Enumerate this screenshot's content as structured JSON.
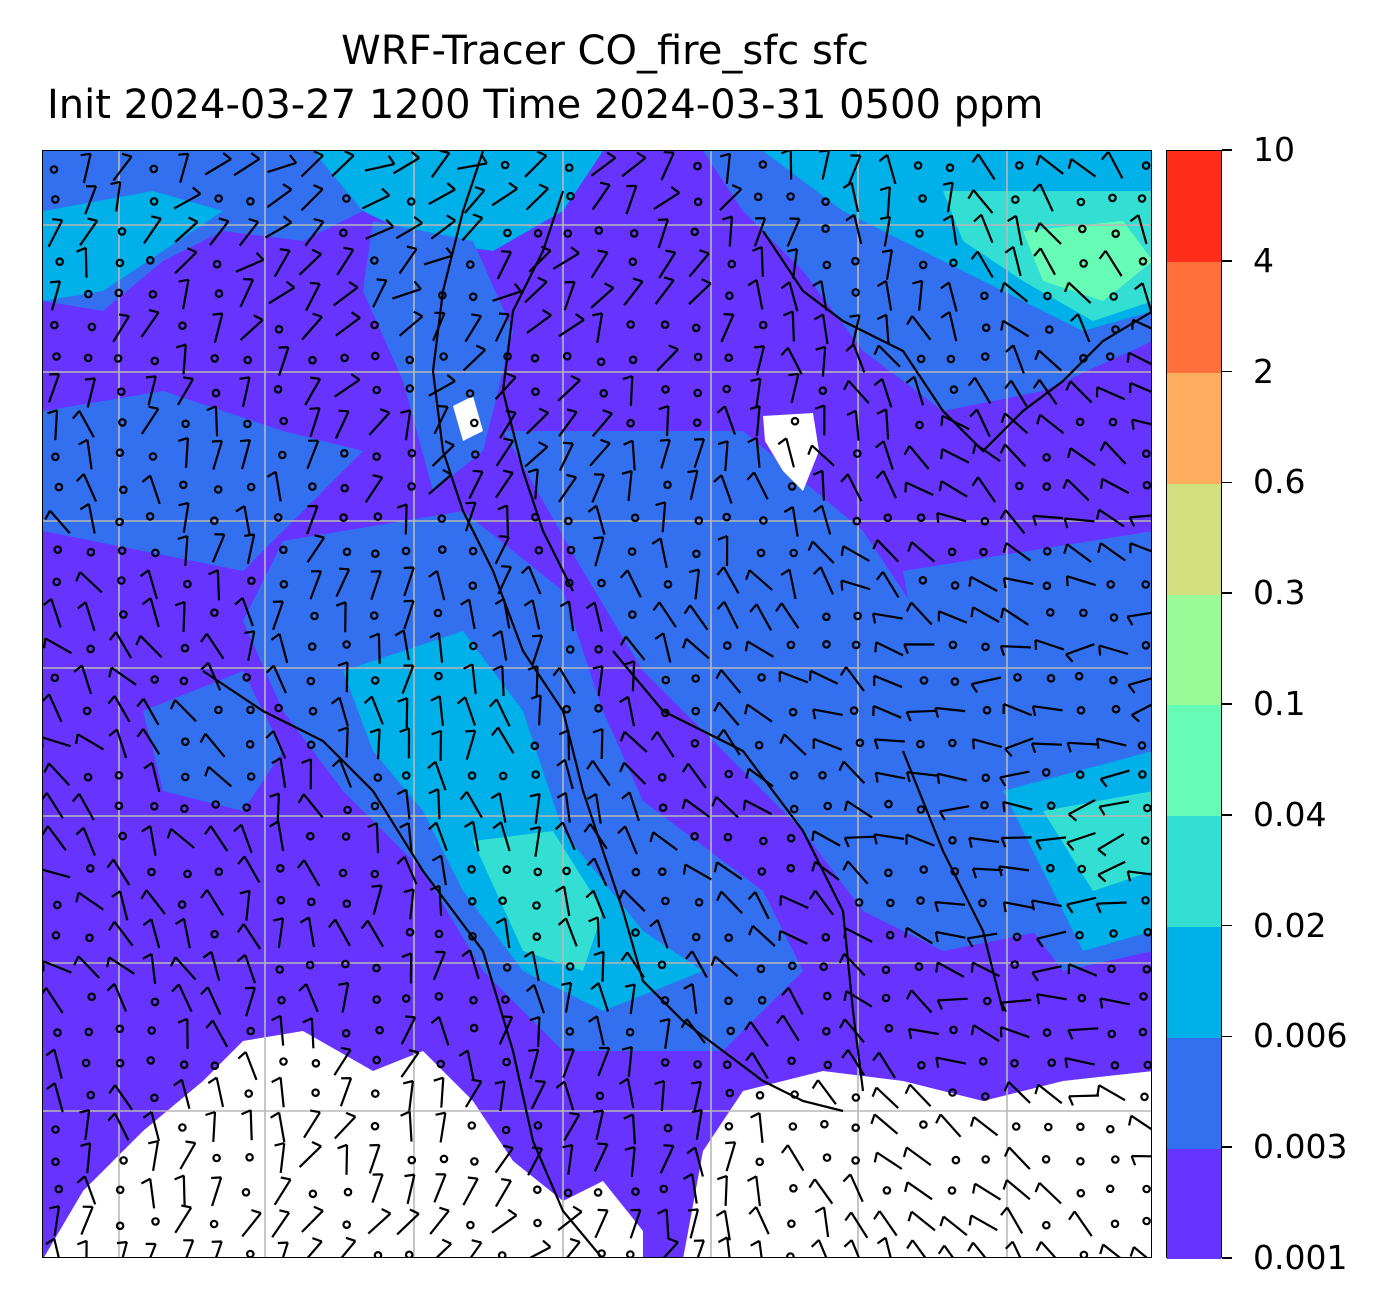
{
  "title": {
    "line1": "WRF-Tracer CO_fire_sfc sfc",
    "line2": "Init 2024-03-27 1200 Time 2024-03-31 0500 ppm"
  },
  "colorbar": {
    "levels": [
      "0.001",
      "0.003",
      "0.006",
      "0.02",
      "0.04",
      "0.1",
      "0.3",
      "0.6",
      "2",
      "4",
      "10"
    ],
    "colors": [
      "#6633ff",
      "#3370f0",
      "#00b0e8",
      "#33dfd2",
      "#66fcb6",
      "#98fb98",
      "#d2e080",
      "#ffae60",
      "#ff703a",
      "#ff2d1a"
    ]
  },
  "map": {
    "background_color": "#6633ff",
    "grid_color": "#b8b8b8",
    "no_data_color": "#ffffff",
    "wind_symbols": [
      "wind-barb",
      "calm-circle"
    ]
  }
}
